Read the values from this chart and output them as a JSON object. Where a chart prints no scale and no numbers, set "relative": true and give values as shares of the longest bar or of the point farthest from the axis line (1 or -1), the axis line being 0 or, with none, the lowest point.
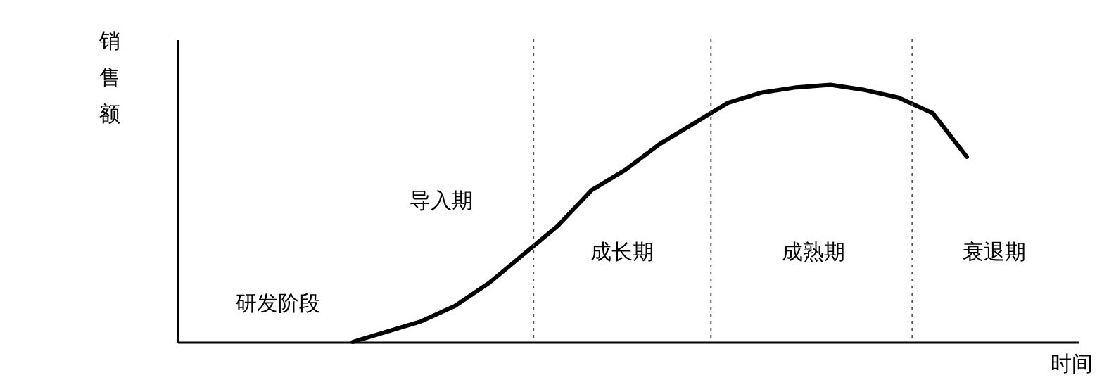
{
  "chart_data": {
    "type": "line",
    "relative": true,
    "xlabel": "时间",
    "tick_labels": false,
    "marker": "none",
    "line_style": "solid",
    "categories": [
      null,
      null,
      null,
      null,
      null,
      null,
      null,
      null,
      null,
      null,
      null,
      null,
      null,
      null,
      null,
      null,
      null,
      null,
      null
    ],
    "series": [
      {
        "color": "#000000",
        "values": [
          0,
          0.04,
          0.08,
          0.14,
          0.23,
          0.34,
          0.45,
          0.59,
          0.67,
          0.77,
          0.85,
          0.93,
          0.97,
          0.99,
          1,
          0.98,
          0.95,
          0.89,
          0.72
        ]
      }
    ],
    "annotations": [
      "销售额",
      "研发阶段",
      "导入期",
      "成长期",
      "成熟期",
      "衰退期"
    ]
  }
}
